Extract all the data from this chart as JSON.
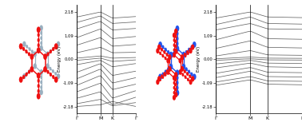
{
  "bg_color": "#ffffff",
  "band_color": "#666666",
  "yticks": [
    -2.18,
    -1.09,
    0.0,
    1.09,
    2.18
  ],
  "ytick_labels": [
    "-2.18",
    "-1.09",
    "0.00",
    "1.09",
    "2.18"
  ],
  "xtick_labels": [
    "Γ",
    "M",
    "K",
    "Γ"
  ],
  "ylim": [
    -2.5,
    2.5
  ],
  "ylabel": "Energy (eV)",
  "red_color": "#ee1111",
  "blue_color": "#2255ee",
  "gray_color": "#9ab0c0",
  "gray_dark": "#7090a0",
  "n_kpts": 100,
  "k_gamma_m": 30,
  "k_m_k": 20,
  "k_k_gamma": 50
}
